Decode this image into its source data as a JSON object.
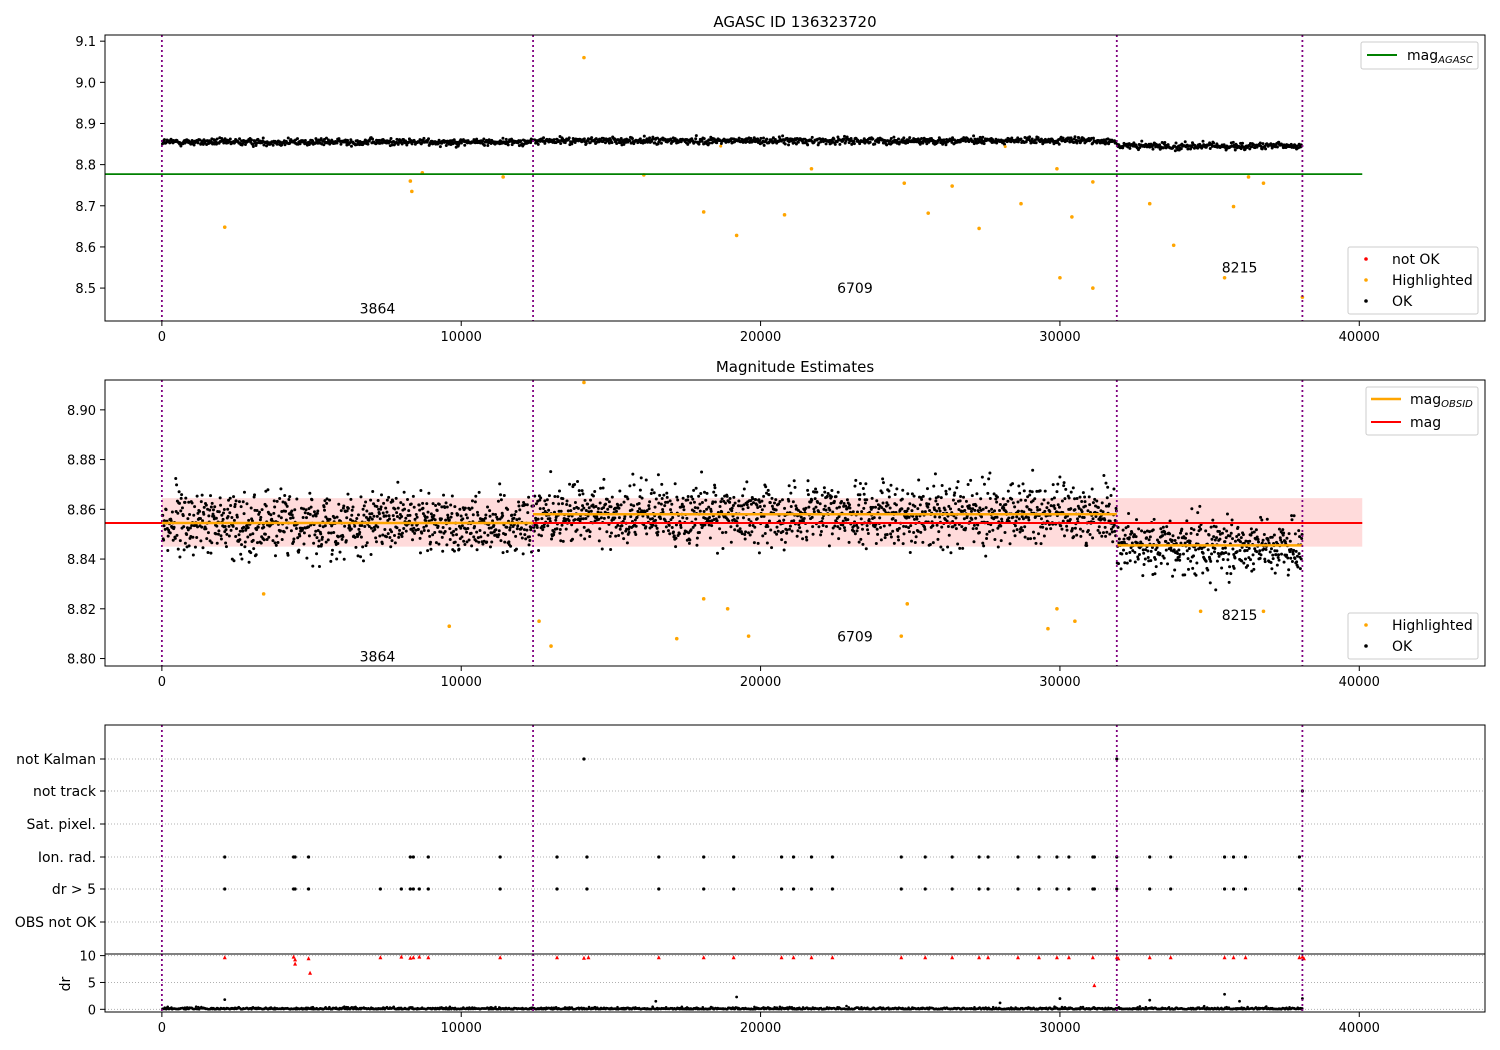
{
  "figure": {
    "x_ticks": [
      0,
      10000,
      20000,
      30000,
      40000
    ],
    "x_range": [
      -1900,
      44200
    ],
    "boundaries": [
      0,
      12400,
      31900,
      38100
    ],
    "colors": {
      "ok": "#000000",
      "highlighted": "#ffa500",
      "not_ok": "#ff0000",
      "mag_agasc": "#008000",
      "mag_obsid": "#ffa500",
      "mag": "#ff0000",
      "boundary": "#800080",
      "band": "#ffcccc"
    }
  },
  "chart_data": [
    {
      "type": "scatter",
      "title": "AGASC ID 136323720",
      "ylim": [
        8.42,
        9.115
      ],
      "y_ticks": [
        8.5,
        8.6,
        8.7,
        8.8,
        8.9,
        9.0,
        9.1
      ],
      "y_tick_labels": [
        "8.5",
        "8.6",
        "8.7",
        "8.8",
        "8.9",
        "9.0",
        "9.1"
      ],
      "legend_lines": [
        {
          "name": "mag",
          "sub": "AGASC"
        }
      ],
      "legend_markers": [
        "not OK",
        "Highlighted",
        "OK"
      ],
      "mag_agasc": 8.777,
      "segments": [
        {
          "label": "3864",
          "x_start": 0,
          "x_end": 12400,
          "mean": 8.855,
          "label_y": 8.45
        },
        {
          "label": "6709",
          "x_start": 12400,
          "x_end": 31900,
          "mean": 8.858,
          "label_y": 8.5
        },
        {
          "label": "8215",
          "x_start": 31900,
          "x_end": 38100,
          "mean": 8.845,
          "label_y": 8.55
        }
      ],
      "outliers": [
        [
          2100,
          8.648
        ],
        [
          8300,
          8.76
        ],
        [
          8350,
          8.735
        ],
        [
          8700,
          8.78
        ],
        [
          11400,
          8.77
        ],
        [
          14100,
          9.06
        ],
        [
          16100,
          8.775
        ],
        [
          18100,
          8.685
        ],
        [
          19200,
          8.628
        ],
        [
          20800,
          8.678
        ],
        [
          21700,
          8.79
        ],
        [
          24800,
          8.755
        ],
        [
          25600,
          8.682
        ],
        [
          26400,
          8.748
        ],
        [
          27300,
          8.645
        ],
        [
          28700,
          8.705
        ],
        [
          29900,
          8.79
        ],
        [
          30000,
          8.525
        ],
        [
          30400,
          8.673
        ],
        [
          31100,
          8.758
        ],
        [
          31100,
          8.5
        ],
        [
          33000,
          8.705
        ],
        [
          33800,
          8.604
        ],
        [
          35500,
          8.525
        ],
        [
          35800,
          8.698
        ],
        [
          36300,
          8.77
        ],
        [
          36800,
          8.755
        ],
        [
          38100,
          8.478
        ]
      ]
    },
    {
      "type": "scatter",
      "title": "Magnitude Estimates",
      "ylim": [
        8.797,
        8.912
      ],
      "y_ticks": [
        8.8,
        8.82,
        8.84,
        8.86,
        8.88,
        8.9
      ],
      "y_tick_labels": [
        "8.80",
        "8.82",
        "8.84",
        "8.86",
        "8.88",
        "8.90"
      ],
      "legend_lines": [
        {
          "name": "mag",
          "sub": "OBSID"
        },
        {
          "name": "mag",
          "sub": ""
        }
      ],
      "legend_markers": [
        "Highlighted",
        "OK"
      ],
      "mag": 8.8545,
      "mag_band": [
        8.845,
        8.8645
      ],
      "segments": [
        {
          "label": "3864",
          "x_start": 0,
          "x_end": 12400,
          "mean": 8.8545,
          "label_y": 8.8008
        },
        {
          "label": "6709",
          "x_start": 12400,
          "x_end": 31900,
          "mean": 8.858,
          "label_y": 8.8088
        },
        {
          "label": "8215",
          "x_start": 31900,
          "x_end": 38100,
          "mean": 8.8455,
          "label_y": 8.8175
        }
      ],
      "outliers": [
        [
          3400,
          8.826
        ],
        [
          9600,
          8.813
        ],
        [
          12600,
          8.815
        ],
        [
          13000,
          8.805
        ],
        [
          17200,
          8.808
        ],
        [
          18100,
          8.824
        ],
        [
          18900,
          8.82
        ],
        [
          19600,
          8.809
        ],
        [
          24700,
          8.809
        ],
        [
          24900,
          8.822
        ],
        [
          29600,
          8.812
        ],
        [
          29900,
          8.82
        ],
        [
          30500,
          8.815
        ],
        [
          34700,
          8.819
        ],
        [
          36800,
          8.819
        ],
        [
          14100,
          8.911
        ]
      ]
    },
    {
      "type": "scatter",
      "categories": [
        "not Kalman",
        "not track",
        "Sat. pixel.",
        "Ion. rad.",
        "dr > 5",
        "OBS not OK"
      ],
      "flags": {
        "not Kalman": [
          14100,
          31900
        ],
        "not track": [
          38100
        ],
        "Sat. pixel.": [],
        "Ion. rad.": [
          2100,
          4400,
          4450,
          4900,
          8300,
          8400,
          8900,
          11300,
          13200,
          14200,
          16600,
          18100,
          19100,
          20700,
          21100,
          21700,
          22400,
          24700,
          25500,
          26400,
          27300,
          27600,
          28600,
          29300,
          29900,
          30300,
          31100,
          31150,
          31900,
          33000,
          33700,
          35500,
          35800,
          36200,
          38000
        ],
        "dr > 5": [
          2100,
          4400,
          4450,
          4900,
          7300,
          8000,
          8300,
          8400,
          8600,
          8900,
          11300,
          13200,
          14200,
          16600,
          18100,
          19100,
          20700,
          21100,
          21700,
          22400,
          24700,
          25500,
          26400,
          27300,
          27600,
          28600,
          29300,
          29900,
          30300,
          31100,
          31150,
          31900,
          33000,
          33700,
          35500,
          35800,
          36200,
          38000
        ],
        "OBS not OK": []
      }
    },
    {
      "type": "scatter",
      "ylabel": "dr",
      "ylim": [
        -0.5,
        10.3
      ],
      "y_ticks": [
        0,
        5,
        10
      ],
      "y_tick_labels": [
        "0",
        "5",
        "10"
      ],
      "red_points": [
        [
          2100,
          9.7
        ],
        [
          4400,
          9.8
        ],
        [
          4450,
          9.3
        ],
        [
          4450,
          8.5
        ],
        [
          4900,
          9.5
        ],
        [
          4950,
          6.8
        ],
        [
          7300,
          9.7
        ],
        [
          8000,
          9.8
        ],
        [
          8300,
          9.6
        ],
        [
          8400,
          9.7
        ],
        [
          8600,
          9.8
        ],
        [
          8900,
          9.7
        ],
        [
          11300,
          9.7
        ],
        [
          13200,
          9.7
        ],
        [
          14100,
          9.6
        ],
        [
          14250,
          9.7
        ],
        [
          16600,
          9.7
        ],
        [
          18100,
          9.7
        ],
        [
          19100,
          9.7
        ],
        [
          20700,
          9.7
        ],
        [
          21100,
          9.7
        ],
        [
          21700,
          9.7
        ],
        [
          22400,
          9.7
        ],
        [
          24700,
          9.7
        ],
        [
          25500,
          9.7
        ],
        [
          26400,
          9.7
        ],
        [
          27300,
          9.7
        ],
        [
          27600,
          9.7
        ],
        [
          28600,
          9.7
        ],
        [
          29300,
          9.7
        ],
        [
          29900,
          9.7
        ],
        [
          30300,
          9.7
        ],
        [
          31100,
          9.7
        ],
        [
          31150,
          4.5
        ],
        [
          31900,
          9.7
        ],
        [
          31950,
          9.5
        ],
        [
          33000,
          9.7
        ],
        [
          33700,
          9.7
        ],
        [
          35500,
          9.7
        ],
        [
          35800,
          9.7
        ],
        [
          36200,
          9.7
        ],
        [
          38000,
          9.7
        ],
        [
          38100,
          9.8
        ],
        [
          38150,
          9.5
        ]
      ],
      "black_points": [
        [
          2100,
          1.8
        ],
        [
          19200,
          2.3
        ],
        [
          30000,
          2.0
        ],
        [
          33000,
          1.7
        ],
        [
          35500,
          2.8
        ],
        [
          36000,
          1.5
        ],
        [
          38100,
          2.0
        ],
        [
          16500,
          1.5
        ],
        [
          28000,
          1.2
        ]
      ]
    }
  ]
}
